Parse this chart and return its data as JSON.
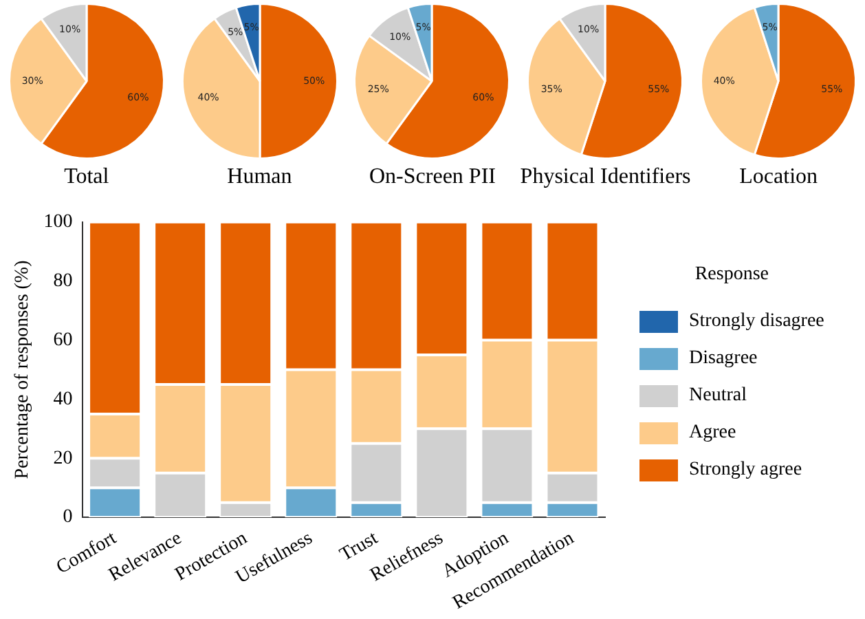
{
  "chart_data": [
    {
      "type": "pie",
      "title": "Total",
      "categories": [
        null,
        null,
        null
      ],
      "values": [
        60,
        30,
        10
      ],
      "colors": [
        "#e66101",
        "#fdcb8a",
        "#d0d0d0"
      ],
      "value_labels": [
        "60%",
        "30%",
        "10%"
      ]
    },
    {
      "type": "pie",
      "title": "Human",
      "categories": [
        null,
        null,
        null,
        null
      ],
      "values": [
        50,
        40,
        5,
        5
      ],
      "colors": [
        "#e66101",
        "#fdcb8a",
        "#d0d0d0",
        "#2166ac"
      ],
      "value_labels": [
        "50%",
        "40%",
        "5%",
        "5%"
      ]
    },
    {
      "type": "pie",
      "title": "On-Screen PII",
      "categories": [
        null,
        null,
        null,
        null
      ],
      "values": [
        60,
        25,
        10,
        5
      ],
      "colors": [
        "#e66101",
        "#fdcb8a",
        "#d0d0d0",
        "#67a9cf"
      ],
      "value_labels": [
        "60%",
        "25%",
        "10%",
        "5%"
      ]
    },
    {
      "type": "pie",
      "title": "Physical Identifiers",
      "categories": [
        null,
        null,
        null
      ],
      "values": [
        55,
        35,
        10
      ],
      "colors": [
        "#e66101",
        "#fdcb8a",
        "#d0d0d0"
      ],
      "value_labels": [
        "55%",
        "35%",
        "10%"
      ]
    },
    {
      "type": "pie",
      "title": "Location",
      "categories": [
        null,
        null,
        null
      ],
      "values": [
        55,
        40,
        5
      ],
      "colors": [
        "#e66101",
        "#fdcb8a",
        "#67a9cf"
      ],
      "value_labels": [
        "55%",
        "40%",
        "5%"
      ]
    },
    {
      "type": "bar",
      "stacked": true,
      "ylabel": "Percentage of responses (%)",
      "legend": "right",
      "legend_title": "Response",
      "ylim": [
        0,
        100
      ],
      "yticks": [
        0,
        20,
        40,
        60,
        80,
        100
      ],
      "categories": [
        "Comfort",
        "Relevance",
        "Protection",
        "Usefulness",
        "Trust",
        "Reliefness",
        "Adoption",
        "Recommendation"
      ],
      "series": [
        {
          "name": "Strongly disagree",
          "color": "#2166ac",
          "values": [
            0,
            0,
            0,
            0,
            0,
            0,
            0,
            0
          ]
        },
        {
          "name": "Disagree",
          "color": "#67a9cf",
          "values": [
            10,
            0,
            0,
            10,
            5,
            0,
            5,
            5
          ]
        },
        {
          "name": "Neutral",
          "color": "#d0d0d0",
          "values": [
            10,
            15,
            5,
            0,
            20,
            30,
            25,
            10
          ]
        },
        {
          "name": "Agree",
          "color": "#fdcb8a",
          "values": [
            15,
            30,
            40,
            40,
            25,
            25,
            30,
            45
          ]
        },
        {
          "name": "Strongly agree",
          "color": "#e66101",
          "values": [
            65,
            55,
            55,
            50,
            50,
            45,
            40,
            40
          ]
        }
      ]
    }
  ]
}
